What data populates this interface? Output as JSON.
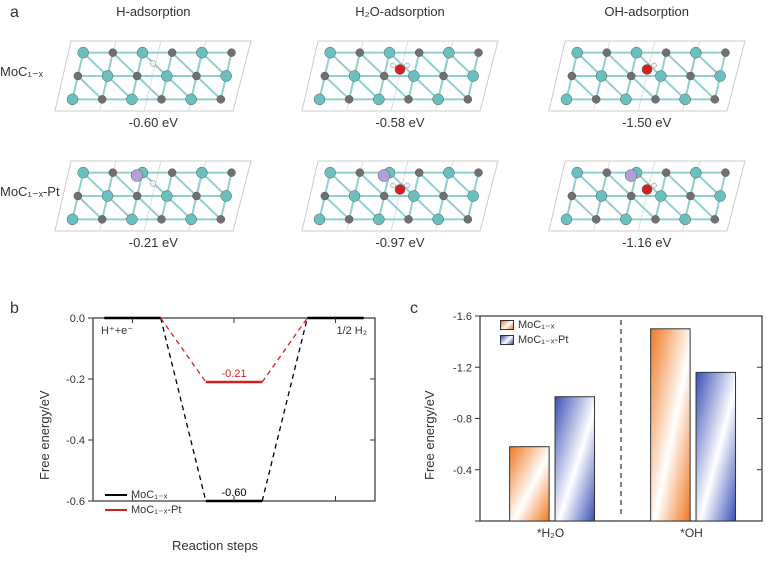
{
  "panelA": {
    "label": "a",
    "column_headers": [
      "H-adsorption",
      "H₂O-adsorption",
      "OH-adsorption"
    ],
    "rows": [
      {
        "label": "MoC₁₋ₓ",
        "cells": [
          {
            "value": "-0.60 eV",
            "adsorbate": "H",
            "has_pt": false
          },
          {
            "value": "-0.58 eV",
            "adsorbate": "H2O",
            "has_pt": false
          },
          {
            "value": "-1.50 eV",
            "adsorbate": "OH",
            "has_pt": false
          }
        ]
      },
      {
        "label": "MoC₁₋ₓ-Pt",
        "cells": [
          {
            "value": "-0.21 eV",
            "adsorbate": "H",
            "has_pt": true
          },
          {
            "value": "-0.97 eV",
            "adsorbate": "H2O",
            "has_pt": true
          },
          {
            "value": "-1.16 eV",
            "adsorbate": "OH",
            "has_pt": true
          }
        ]
      }
    ],
    "atom_colors": {
      "Mo": "#6bbfbf",
      "C": "#707070",
      "O": "#d62020",
      "H": "#f0f0f0",
      "Pt": "#b0a0d8",
      "bond": "#8fd0d0",
      "lattice": "#cccccc"
    },
    "label_fontsize": 13
  },
  "panelB": {
    "label": "b",
    "ylabel": "Free energy/eV",
    "xlabel": "Reaction steps",
    "ylim": [
      -0.6,
      0.0
    ],
    "ytick_step": 0.2,
    "left_annot": "H⁺+e⁻",
    "right_annot": "1/2 H₂",
    "series": [
      {
        "name": "MoC₁₋ₓ",
        "color": "#000000",
        "mid_value": -0.6,
        "mid_label": "-0.60"
      },
      {
        "name": "MoC₁₋ₓ-Pt",
        "color": "#d62020",
        "mid_value": -0.21,
        "mid_label": "-0.21"
      }
    ],
    "axis_color": "#333333",
    "dashed_color": "#555555",
    "tick_fontsize": 11,
    "label_fontsize": 13
  },
  "panelC": {
    "label": "c",
    "ylabel": "Free energy/eV",
    "ylim": [
      0,
      -1.6
    ],
    "ytick_step": -0.4,
    "groups": [
      "*H₂O",
      "*OH"
    ],
    "series": [
      {
        "name": "MoC₁₋ₓ",
        "color": "#f07820",
        "values": [
          0.58,
          1.5
        ]
      },
      {
        "name": "MoC₁₋ₓ-Pt",
        "color": "#3850b8",
        "values": [
          0.97,
          1.16
        ]
      }
    ],
    "bar_border": "#333333",
    "divider_color": "#333333",
    "axis_color": "#333333",
    "tick_fontsize": 11,
    "label_fontsize": 13
  }
}
